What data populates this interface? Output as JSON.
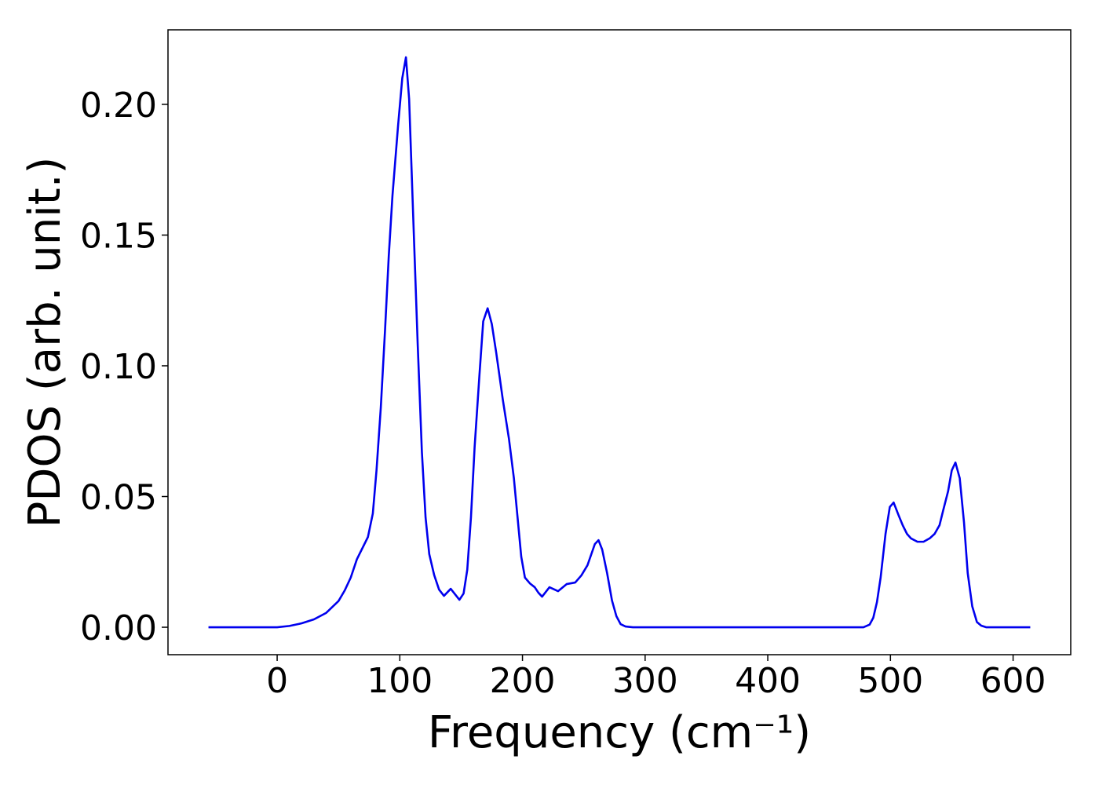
{
  "chart_data": {
    "type": "line",
    "xlabel": "Frequency (cm⁻¹)",
    "ylabel": "PDOS (arb. unit.)",
    "xlim": [
      -89,
      647
    ],
    "ylim": [
      -0.0105,
      0.2285
    ],
    "xticks": [
      0,
      100,
      200,
      300,
      400,
      500,
      600
    ],
    "yticks": [
      {
        "value": 0,
        "label": "0.00"
      },
      {
        "value": 0.05,
        "label": "0.05"
      },
      {
        "value": 0.1,
        "label": "0.10"
      },
      {
        "value": 0.15,
        "label": "0.15"
      },
      {
        "value": 0.2,
        "label": "0.20"
      }
    ],
    "series": [
      {
        "color": "#0000ee",
        "x": [
          -56,
          -20,
          0,
          10,
          20,
          30,
          40,
          50,
          55,
          60,
          65,
          74,
          78,
          81,
          84.5,
          88,
          91,
          94,
          98.6,
          102,
          105,
          107.6,
          111,
          114.6,
          118,
          121,
          124,
          128,
          132,
          136,
          141.5,
          148.6,
          152,
          155,
          158,
          161,
          165,
          168,
          171.6,
          175,
          178.6,
          184,
          189,
          193,
          196,
          199,
          202,
          206,
          210,
          213,
          216,
          222,
          229,
          236,
          243,
          248,
          253,
          259,
          262,
          265,
          269,
          273,
          276.6,
          280,
          284,
          290,
          478,
          483,
          486,
          489,
          492,
          496,
          499.5,
          502.6,
          506.5,
          510,
          513.5,
          516.7,
          522,
          527,
          532,
          536,
          540,
          543,
          547,
          550,
          553,
          556.5,
          560,
          563,
          566.7,
          570.5,
          574,
          578,
          614
        ],
        "values": [
          0,
          0,
          0,
          0.0005,
          0.0015,
          0.003,
          0.0055,
          0.01,
          0.014,
          0.019,
          0.026,
          0.0345,
          0.0435,
          0.06,
          0.084,
          0.114,
          0.142,
          0.165,
          0.192,
          0.21,
          0.218,
          0.202,
          0.156,
          0.108,
          0.067,
          0.042,
          0.028,
          0.02,
          0.0144,
          0.012,
          0.0147,
          0.0105,
          0.0129,
          0.022,
          0.042,
          0.069,
          0.097,
          0.117,
          0.122,
          0.116,
          0.105,
          0.087,
          0.072,
          0.057,
          0.042,
          0.027,
          0.019,
          0.0168,
          0.0153,
          0.0132,
          0.0117,
          0.0153,
          0.0138,
          0.0165,
          0.0171,
          0.0198,
          0.0237,
          0.0318,
          0.0333,
          0.0297,
          0.0207,
          0.0102,
          0.0042,
          0.0012,
          0.0003,
          0,
          0,
          0.001,
          0.0036,
          0.0096,
          0.019,
          0.0357,
          0.046,
          0.0477,
          0.043,
          0.039,
          0.0357,
          0.034,
          0.0327,
          0.0327,
          0.034,
          0.0357,
          0.039,
          0.0447,
          0.052,
          0.06,
          0.063,
          0.057,
          0.04,
          0.0207,
          0.008,
          0.002,
          0.0006,
          0,
          0
        ]
      }
    ]
  }
}
